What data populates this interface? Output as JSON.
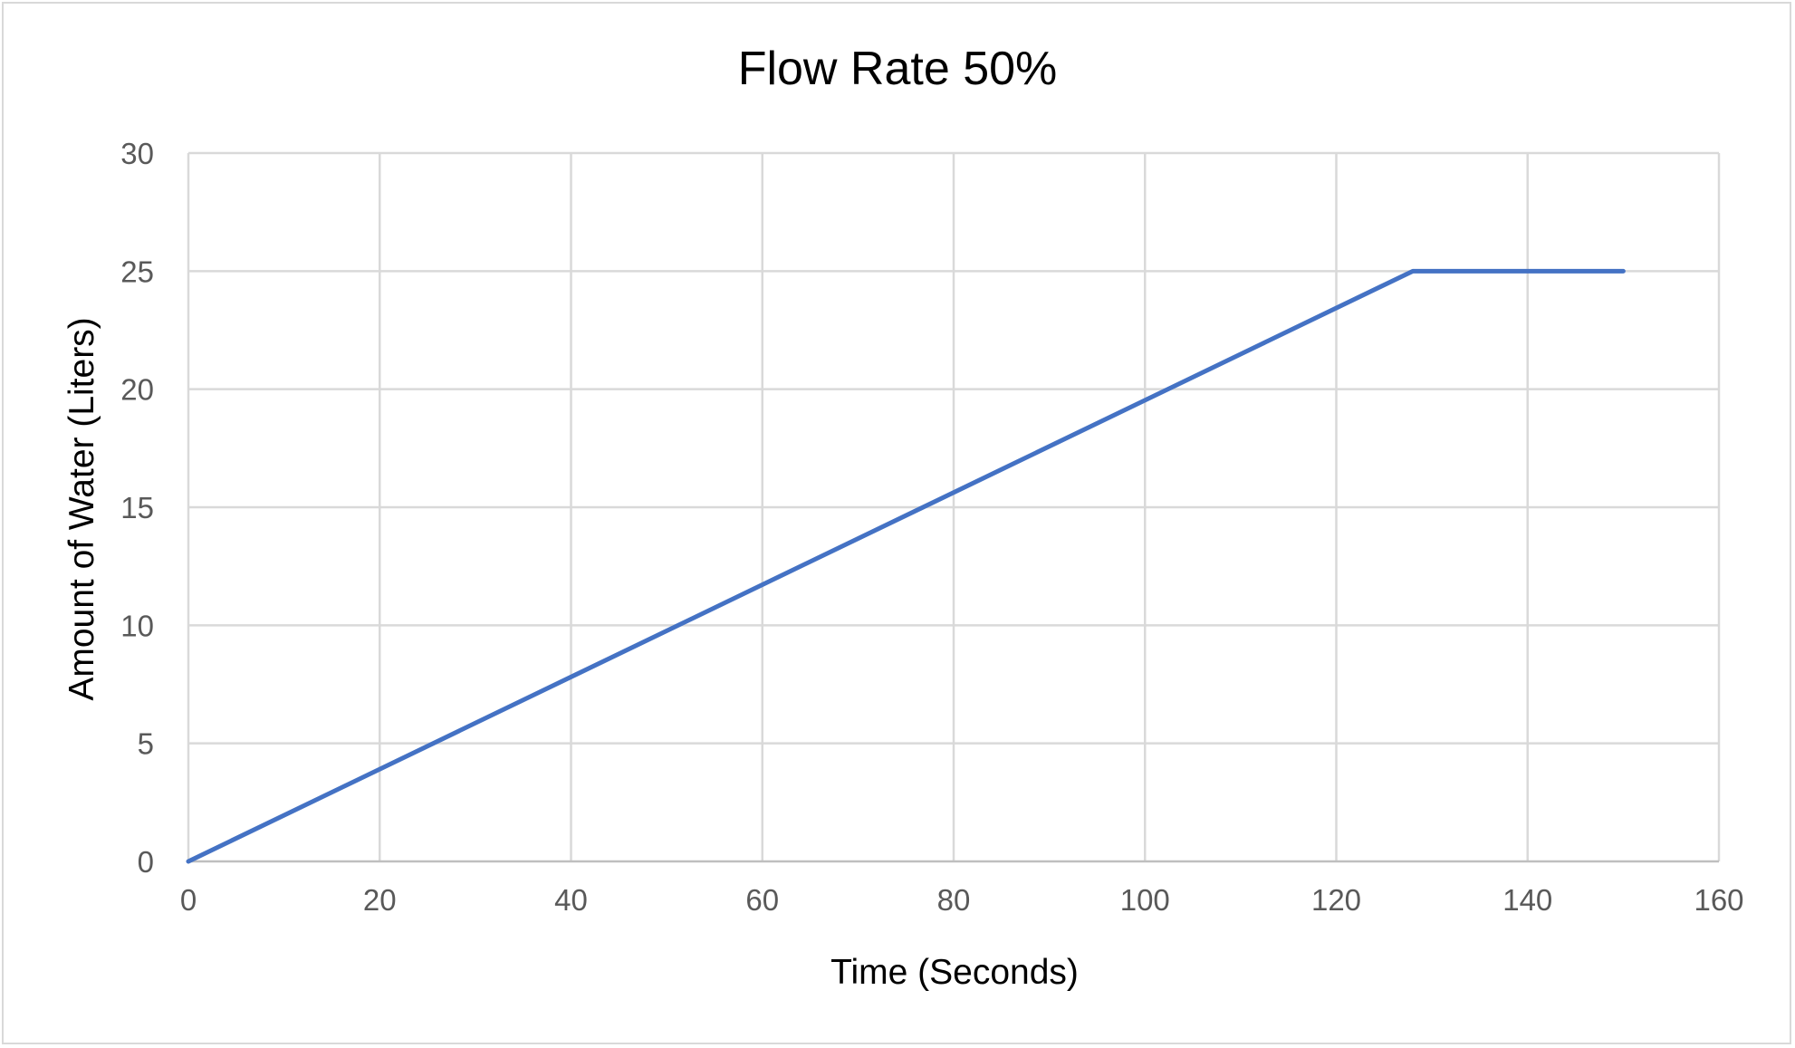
{
  "chart_data": {
    "type": "line",
    "title": "Flow Rate 50%",
    "xlabel": "Time (Seconds)",
    "ylabel": "Amount of Water (Liters)",
    "xlim": [
      0,
      160
    ],
    "ylim": [
      0,
      30
    ],
    "xticks": [
      0,
      20,
      40,
      60,
      80,
      100,
      120,
      140,
      160
    ],
    "yticks": [
      0,
      5,
      10,
      15,
      20,
      25,
      30
    ],
    "grid": true,
    "legend": "none",
    "series": [
      {
        "color": "#4472c4",
        "points": [
          {
            "x": 0,
            "y": 0
          },
          {
            "x": 128,
            "y": 25
          },
          {
            "x": 150,
            "y": 25
          }
        ]
      }
    ]
  }
}
